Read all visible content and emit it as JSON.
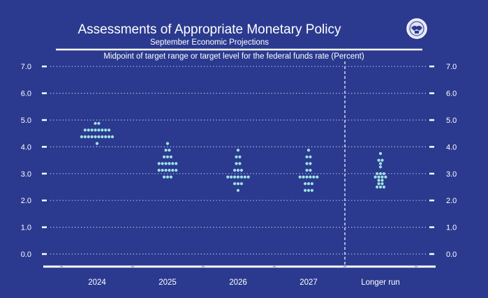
{
  "chart_data": {
    "type": "scatter",
    "title": "Assessments of Appropriate Monetary Policy",
    "subtitle": "September Economic Projections",
    "ylabel": "Midpoint of target range or target level for the federal funds rate (Percent)",
    "xlabel": "",
    "ylim": [
      0,
      7
    ],
    "yticks": [
      "0.0",
      "1.0",
      "2.0",
      "3.0",
      "4.0",
      "5.0",
      "6.0",
      "7.0"
    ],
    "grid": true,
    "categories": [
      "2024",
      "2025",
      "2026",
      "2027",
      "Longer run"
    ],
    "dots": [
      [
        {
          "y": 4.875,
          "n": 2
        },
        {
          "y": 4.625,
          "n": 8
        },
        {
          "y": 4.375,
          "n": 10
        },
        {
          "y": 4.125,
          "n": 1
        }
      ],
      [
        {
          "y": 4.125,
          "n": 1
        },
        {
          "y": 3.875,
          "n": 2
        },
        {
          "y": 3.625,
          "n": 3
        },
        {
          "y": 3.375,
          "n": 6
        },
        {
          "y": 3.125,
          "n": 6
        },
        {
          "y": 2.875,
          "n": 3
        }
      ],
      [
        {
          "y": 3.875,
          "n": 1
        },
        {
          "y": 3.625,
          "n": 2
        },
        {
          "y": 3.375,
          "n": 2
        },
        {
          "y": 3.125,
          "n": 3
        },
        {
          "y": 2.875,
          "n": 7
        },
        {
          "y": 2.625,
          "n": 3
        },
        {
          "y": 2.375,
          "n": 1
        }
      ],
      [
        {
          "y": 3.875,
          "n": 1
        },
        {
          "y": 3.625,
          "n": 2
        },
        {
          "y": 3.375,
          "n": 2
        },
        {
          "y": 3.125,
          "n": 2
        },
        {
          "y": 2.875,
          "n": 6
        },
        {
          "y": 2.625,
          "n": 3
        },
        {
          "y": 2.375,
          "n": 3
        }
      ],
      [
        {
          "y": 3.75,
          "n": 1
        },
        {
          "y": 3.5,
          "n": 2
        },
        {
          "y": 3.375,
          "n": 1
        },
        {
          "y": 3.25,
          "n": 1
        },
        {
          "y": 3.0,
          "n": 3
        },
        {
          "y": 2.875,
          "n": 4
        },
        {
          "y": 2.75,
          "n": 2
        },
        {
          "y": 2.625,
          "n": 2
        },
        {
          "y": 2.5,
          "n": 3
        }
      ]
    ]
  },
  "colors": {
    "background": "#2b3a8f",
    "dot": "#9fe3e3",
    "text": "#ffffff",
    "grid": "#c9cfee"
  },
  "logo_icon": "federal-reserve-seal-icon"
}
